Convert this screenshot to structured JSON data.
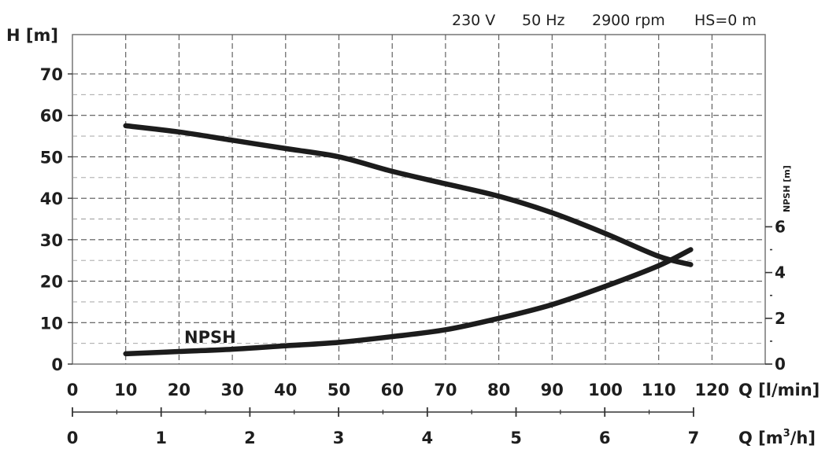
{
  "header": {
    "voltage": "230 V",
    "frequency": "50 Hz",
    "speed": "2900 rpm",
    "hs": "HS=0 m"
  },
  "chart_data": {
    "type": "line",
    "ylabel": "H [m]",
    "y2label": "NPSH [m]",
    "xlabel": "Q [l/min]",
    "x2label_base": "Q [m",
    "x2label_exp": "3",
    "x2label_end": "/h]",
    "xlim": [
      0,
      130
    ],
    "ylim": [
      0,
      80
    ],
    "y2lim": [
      0,
      14
    ],
    "x_ticks": [
      0,
      10,
      20,
      30,
      40,
      50,
      60,
      70,
      80,
      90,
      100,
      110,
      120
    ],
    "y_ticks": [
      0,
      10,
      20,
      30,
      40,
      50,
      60,
      70
    ],
    "y2_ticks": [
      0,
      2,
      4,
      6
    ],
    "x2_ticks": [
      0,
      1,
      2,
      3,
      4,
      5,
      6,
      7
    ],
    "grid": true,
    "series": [
      {
        "axis": "left",
        "x": [
          10,
          20,
          30,
          40,
          50,
          60,
          70,
          80,
          90,
          100,
          110,
          116
        ],
        "values": [
          57.5,
          56,
          54,
          52,
          50,
          46.5,
          43.5,
          40.5,
          36.5,
          31.5,
          26,
          24
        ]
      },
      {
        "name": "NPSH",
        "axis": "right",
        "x": [
          10,
          20,
          30,
          40,
          50,
          60,
          70,
          80,
          90,
          100,
          110,
          116
        ],
        "values": [
          0.45,
          0.55,
          0.65,
          0.8,
          0.95,
          1.2,
          1.5,
          2.0,
          2.6,
          3.4,
          4.3,
          5.0
        ]
      }
    ],
    "annotations": [
      "NPSH"
    ]
  }
}
